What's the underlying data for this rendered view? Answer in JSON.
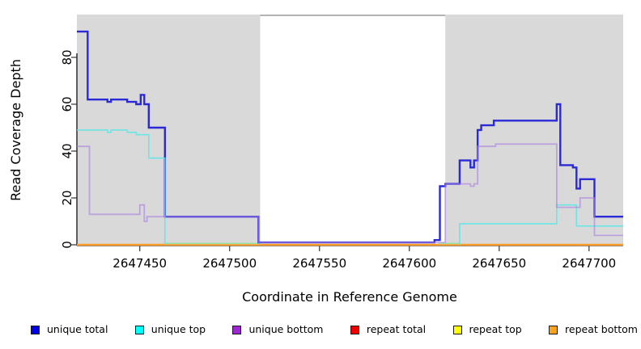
{
  "chart_data": {
    "type": "line",
    "step": true,
    "title": "",
    "xlabel": "Coordinate in Reference Genome",
    "ylabel": "Read Coverage Depth",
    "xlim": [
      2647415,
      2647719
    ],
    "ylim": [
      0,
      98
    ],
    "x_ticks": [
      2647450,
      2647500,
      2647550,
      2647600,
      2647650,
      2647700
    ],
    "y_ticks": [
      0,
      20,
      40,
      60,
      80
    ],
    "grid": false,
    "legend_position": "bottom",
    "panel_shading": {
      "color": "#d9d9d9",
      "regions": [
        [
          2647415,
          2647517
        ],
        [
          2647620,
          2647719
        ]
      ],
      "gap_region": [
        2647517,
        2647620
      ],
      "gap_top_border_color": "#9a9a9a"
    },
    "series": [
      {
        "name": "unique total",
        "color": "#0000ee",
        "line_color": "#2a2ad8",
        "points": [
          [
            2647415,
            91
          ],
          [
            2647421,
            62
          ],
          [
            2647432,
            61
          ],
          [
            2647434,
            62
          ],
          [
            2647443,
            61
          ],
          [
            2647448,
            60
          ],
          [
            2647450.5,
            64
          ],
          [
            2647452.5,
            60
          ],
          [
            2647455,
            50
          ],
          [
            2647464,
            12
          ],
          [
            2647516,
            1
          ],
          [
            2647614,
            2
          ],
          [
            2647617,
            25
          ],
          [
            2647620,
            26
          ],
          [
            2647628,
            36
          ],
          [
            2647634,
            33
          ],
          [
            2647636,
            36
          ],
          [
            2647638,
            49
          ],
          [
            2647640,
            51
          ],
          [
            2647647,
            53
          ],
          [
            2647682,
            60
          ],
          [
            2647684,
            34
          ],
          [
            2647691,
            33
          ],
          [
            2647693,
            24
          ],
          [
            2647695,
            28
          ],
          [
            2647703,
            12
          ]
        ]
      },
      {
        "name": "unique top",
        "color": "#00ffff",
        "line_color": "#4de8e8",
        "points": [
          [
            2647415,
            49
          ],
          [
            2647432,
            48
          ],
          [
            2647434,
            49
          ],
          [
            2647443,
            48
          ],
          [
            2647448,
            47
          ],
          [
            2647455,
            37
          ],
          [
            2647464,
            null
          ],
          [
            2647628,
            9
          ],
          [
            2647682,
            17
          ],
          [
            2647693,
            8
          ]
        ]
      },
      {
        "name": "unique bottom",
        "color": "#9c27cf",
        "line_color": "#a87fe0",
        "points": [
          [
            2647415,
            42
          ],
          [
            2647422,
            13
          ],
          [
            2647450,
            17
          ],
          [
            2647452.5,
            10
          ],
          [
            2647454,
            12
          ],
          [
            2647516,
            1
          ],
          [
            2647620,
            26
          ],
          [
            2647634,
            25
          ],
          [
            2647636,
            26
          ],
          [
            2647638,
            42
          ],
          [
            2647648,
            43
          ],
          [
            2647682,
            16
          ],
          [
            2647695,
            20
          ],
          [
            2647703,
            4
          ]
        ]
      },
      {
        "name": "repeat total",
        "color": "#ee0000",
        "line_color": "#ee0000",
        "points": [
          [
            2647415,
            0
          ]
        ]
      },
      {
        "name": "repeat top",
        "color": "#ffff00",
        "line_color": "#ffff00",
        "points": [
          [
            2647415,
            0
          ]
        ]
      },
      {
        "name": "repeat bottom",
        "color": "#ffa216",
        "line_color": "#ff9d26",
        "points": [
          [
            2647415,
            0
          ]
        ]
      }
    ],
    "zero_overlap_segments": [
      {
        "x_range": [
          2647464,
          2647517
        ],
        "color": "#98e0a8"
      },
      {
        "x_range": [
          2647616,
          2647628
        ],
        "color": "#98e0a8"
      }
    ]
  },
  "legend": {
    "items": [
      {
        "label": "unique total",
        "color": "#0000ee"
      },
      {
        "label": "unique top",
        "color": "#00ffff"
      },
      {
        "label": "unique bottom",
        "color": "#9c27cf"
      },
      {
        "label": "repeat total",
        "color": "#ee0000"
      },
      {
        "label": "repeat top",
        "color": "#ffff00"
      },
      {
        "label": "repeat bottom",
        "color": "#ffa216"
      }
    ]
  }
}
